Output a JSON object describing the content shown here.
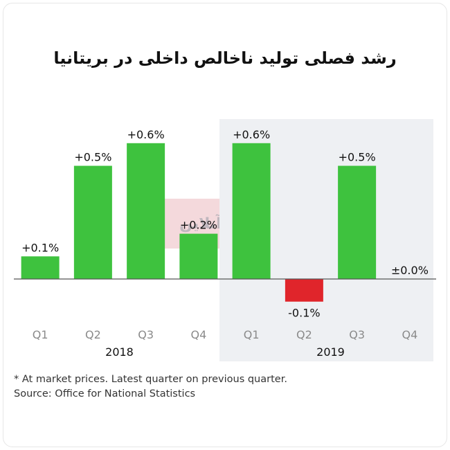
{
  "title": "رشد فصلی تولید ناخالص داخلی در بریتانیا",
  "footnote": "* At market prices. Latest quarter on previous quarter.",
  "source": "Source: Office for National Statistics",
  "watermark": "اقتصادآنلاین",
  "colors": {
    "positive": "#3ec23e",
    "negative": "#e0252b",
    "highlight_bg": "#eef0f3",
    "axis": "#555555"
  },
  "chart_data": {
    "type": "bar",
    "title": "رشد فصلی تولید ناخالص داخلی در بریتانیا",
    "categories": [
      "Q1",
      "Q2",
      "Q3",
      "Q4",
      "Q1",
      "Q2",
      "Q3",
      "Q4"
    ],
    "years": [
      {
        "label": "2018",
        "quarters": [
          0,
          3
        ]
      },
      {
        "label": "2019",
        "quarters": [
          4,
          7
        ]
      }
    ],
    "values": [
      0.1,
      0.5,
      0.6,
      0.2,
      0.6,
      -0.1,
      0.5,
      0.0
    ],
    "labels": [
      "+0.1%",
      "+0.5%",
      "+0.6%",
      "+0.2%",
      "+0.6%",
      "-0.1%",
      "+0.5%",
      "±0.0%"
    ],
    "highlight_year": "2019",
    "ylim": [
      -0.1,
      0.6
    ],
    "grid": false,
    "legend": "none",
    "xlabel": "",
    "ylabel": ""
  }
}
